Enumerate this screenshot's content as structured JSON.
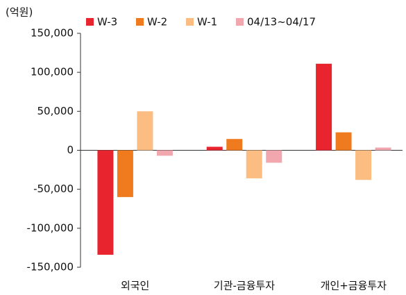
{
  "chart_data": {
    "type": "bar",
    "unit": "(억원)",
    "categories": [
      "외국인",
      "기관-금융투자",
      "개인+금융투자"
    ],
    "series": [
      {
        "name": "W-3",
        "color": "#e8242f",
        "values": [
          -134000,
          4500,
          111000
        ]
      },
      {
        "name": "W-2",
        "color": "#f07b1e",
        "values": [
          -60000,
          14500,
          23000
        ]
      },
      {
        "name": "W-1",
        "color": "#fbbd82",
        "values": [
          50000,
          -36000,
          -38000
        ]
      },
      {
        "name": "04/13~04/17",
        "color": "#f1a7ad",
        "values": [
          -7000,
          -16000,
          3500
        ]
      }
    ],
    "ylim": [
      -150000,
      150000
    ],
    "yticks": [
      {
        "value": -150000,
        "label": "-150,000"
      },
      {
        "value": -100000,
        "label": "-100,000"
      },
      {
        "value": -50000,
        "label": "-50,000"
      },
      0,
      {
        "value": 50000,
        "label": "50,000"
      },
      {
        "value": 100000,
        "label": "100,000"
      },
      {
        "value": 150000,
        "label": "150,000"
      }
    ],
    "legend": "top"
  }
}
